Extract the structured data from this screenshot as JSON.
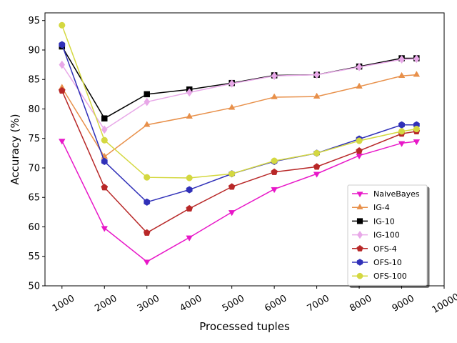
{
  "chart_data": {
    "type": "line",
    "title": "",
    "xlabel": "Processed tuples",
    "ylabel": "Accuracy (%)",
    "xlim": [
      600,
      10000
    ],
    "ylim": [
      50,
      96.3
    ],
    "xticks": [
      1000,
      2000,
      3000,
      4000,
      5000,
      6000,
      7000,
      8000,
      9000,
      10000
    ],
    "yticks": [
      50,
      55,
      60,
      65,
      70,
      75,
      80,
      85,
      90,
      95
    ],
    "grid": false,
    "legend_position": "lower-right",
    "x": [
      1000,
      2000,
      3000,
      4000,
      5000,
      6000,
      7000,
      8000,
      9000,
      9350
    ],
    "series": [
      {
        "name": "NaiveBayes",
        "color": "#e817c8",
        "marker": "triangle-down",
        "values": [
          74.6,
          59.8,
          54.1,
          58.2,
          62.5,
          66.4,
          69.0,
          72.1,
          74.2,
          74.5
        ]
      },
      {
        "name": "IG-4",
        "color": "#e8904a",
        "marker": "triangle-up",
        "values": [
          83.6,
          71.9,
          77.3,
          78.7,
          80.2,
          82.0,
          82.1,
          83.8,
          85.6,
          85.8
        ]
      },
      {
        "name": "IG-10",
        "color": "#000000",
        "marker": "square",
        "values": [
          90.6,
          78.4,
          82.5,
          83.3,
          84.4,
          85.7,
          85.8,
          87.2,
          88.6,
          88.6
        ]
      },
      {
        "name": "IG-100",
        "color": "#e8a8e8",
        "marker": "diamond",
        "values": [
          87.5,
          76.5,
          81.2,
          82.8,
          84.3,
          85.6,
          85.8,
          87.1,
          88.4,
          88.5
        ]
      },
      {
        "name": "OFS-4",
        "color": "#b82828",
        "marker": "pentagon",
        "values": [
          83.1,
          66.7,
          59.0,
          63.1,
          66.8,
          69.3,
          70.2,
          72.9,
          75.8,
          76.2
        ]
      },
      {
        "name": "OFS-10",
        "color": "#3030b8",
        "marker": "hexagon",
        "values": [
          90.9,
          71.1,
          64.2,
          66.3,
          69.0,
          71.1,
          72.5,
          74.9,
          77.3,
          77.3
        ]
      },
      {
        "name": "OFS-100",
        "color": "#d4d840",
        "marker": "circle",
        "values": [
          94.2,
          74.7,
          68.4,
          68.3,
          69.0,
          71.2,
          72.5,
          74.6,
          76.2,
          76.6
        ]
      }
    ]
  }
}
